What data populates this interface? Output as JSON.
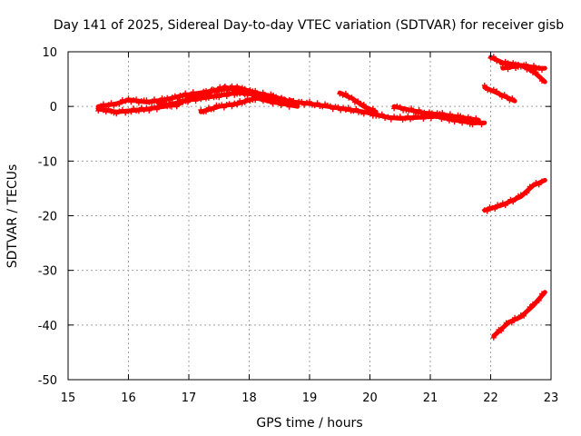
{
  "chart_data": {
    "type": "scatter",
    "title": "Day 141 of 2025, Sidereal Day-to-day VTEC variation (SDTVAR) for receiver gisb",
    "xlabel": "GPS time / hours",
    "ylabel": "SDTVAR / TECUs",
    "xlim": [
      15,
      23
    ],
    "ylim": [
      -50,
      10
    ],
    "xticks": [
      "15",
      "16",
      "17",
      "18",
      "19",
      "20",
      "21",
      "22",
      "23"
    ],
    "yticks": [
      "10",
      "0",
      "-10",
      "-20",
      "-30",
      "-40",
      "-50"
    ],
    "grid": true,
    "marker_color": "#ff0000",
    "series": [
      {
        "x": [
          15.5,
          15.8,
          16.0,
          16.3,
          16.6,
          16.9,
          17.2,
          17.5,
          17.8,
          18.1,
          18.4,
          18.8
        ],
        "y": [
          0.0,
          0.5,
          1.2,
          0.8,
          1.2,
          2.0,
          2.5,
          3.0,
          3.5,
          2.5,
          1.8,
          0.5
        ]
      },
      {
        "x": [
          15.5,
          15.8,
          16.0,
          16.3,
          16.6,
          16.9,
          17.2,
          17.5,
          17.8,
          18.1,
          18.4,
          18.8
        ],
        "y": [
          -0.5,
          -1.0,
          -0.8,
          -0.5,
          0.0,
          1.0,
          1.5,
          2.0,
          2.5,
          2.2,
          1.5,
          0.5
        ]
      },
      {
        "x": [
          16.5,
          16.8,
          17.0,
          17.3,
          17.6,
          18.0,
          18.3,
          18.8
        ],
        "y": [
          0.5,
          0.2,
          1.5,
          2.5,
          3.5,
          2.5,
          1.0,
          0.0
        ]
      },
      {
        "x": [
          17.2,
          17.5,
          17.8,
          18.1,
          18.5,
          18.8
        ],
        "y": [
          -1.0,
          0.0,
          0.5,
          1.5,
          1.0,
          0.5
        ]
      },
      {
        "x": [
          18.6,
          19.0,
          19.3,
          19.6,
          19.9,
          20.1,
          20.3,
          20.5,
          20.8,
          21.1,
          21.4,
          21.7,
          21.9
        ],
        "y": [
          1.0,
          0.5,
          0.0,
          -0.5,
          -1.0,
          -1.5,
          -2.0,
          -2.2,
          -2.0,
          -1.8,
          -2.5,
          -3.0,
          -3.0
        ]
      },
      {
        "x": [
          19.5,
          19.7,
          19.9,
          20.1
        ],
        "y": [
          2.5,
          1.5,
          0.0,
          -1.0
        ]
      },
      {
        "x": [
          20.4,
          20.6,
          20.9,
          21.2,
          21.5,
          21.8
        ],
        "y": [
          0.0,
          -0.5,
          -1.2,
          -1.5,
          -2.0,
          -2.5
        ]
      },
      {
        "x": [
          22.0,
          22.2,
          22.5,
          22.8,
          22.9
        ],
        "y": [
          9.0,
          8.0,
          7.5,
          7.0,
          7.0
        ]
      },
      {
        "x": [
          22.2,
          22.5,
          22.7,
          22.9
        ],
        "y": [
          7.0,
          7.5,
          6.5,
          4.5
        ]
      },
      {
        "x": [
          21.9,
          22.1,
          22.4
        ],
        "y": [
          3.5,
          2.5,
          1.0
        ]
      },
      {
        "x": [
          21.9,
          22.2,
          22.5,
          22.7,
          22.9
        ],
        "y": [
          -19.0,
          -18.0,
          -16.5,
          -14.5,
          -13.5
        ]
      },
      {
        "x": [
          22.05,
          22.3,
          22.5,
          22.7,
          22.9
        ],
        "y": [
          -42.0,
          -39.5,
          -38.5,
          -36.5,
          -34.0
        ]
      }
    ]
  }
}
